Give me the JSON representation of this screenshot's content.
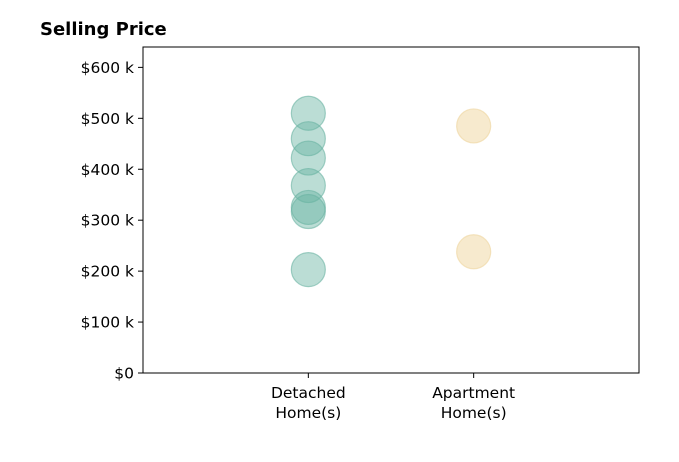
{
  "chart_data": {
    "type": "scatter",
    "title": "Selling Price",
    "xlabel": "",
    "ylabel": "",
    "categories": [
      "Detached\nHome(s)",
      "Apartment\nHome(s)"
    ],
    "x_range": [
      -1,
      2
    ],
    "ylim": [
      0,
      640000
    ],
    "y_ticks": [
      {
        "value": 0,
        "label": "$0"
      },
      {
        "value": 100000,
        "label": "$100 k"
      },
      {
        "value": 200000,
        "label": "$200 k"
      },
      {
        "value": 300000,
        "label": "$300 k"
      },
      {
        "value": 400000,
        "label": "$400 k"
      },
      {
        "value": 500000,
        "label": "$500 k"
      },
      {
        "value": 600000,
        "label": "$600 k"
      }
    ],
    "grid": false,
    "legend": "none",
    "series": [
      {
        "category": "Detached\nHome(s)",
        "color": "#69b3a2",
        "opacity": 0.45,
        "values": [
          510000,
          460000,
          422000,
          368000,
          325000,
          317000,
          203000
        ]
      },
      {
        "category": "Apartment\nHome(s)",
        "color": "#f0d9a6",
        "opacity": 0.55,
        "values": [
          485000,
          238000
        ]
      }
    ]
  }
}
